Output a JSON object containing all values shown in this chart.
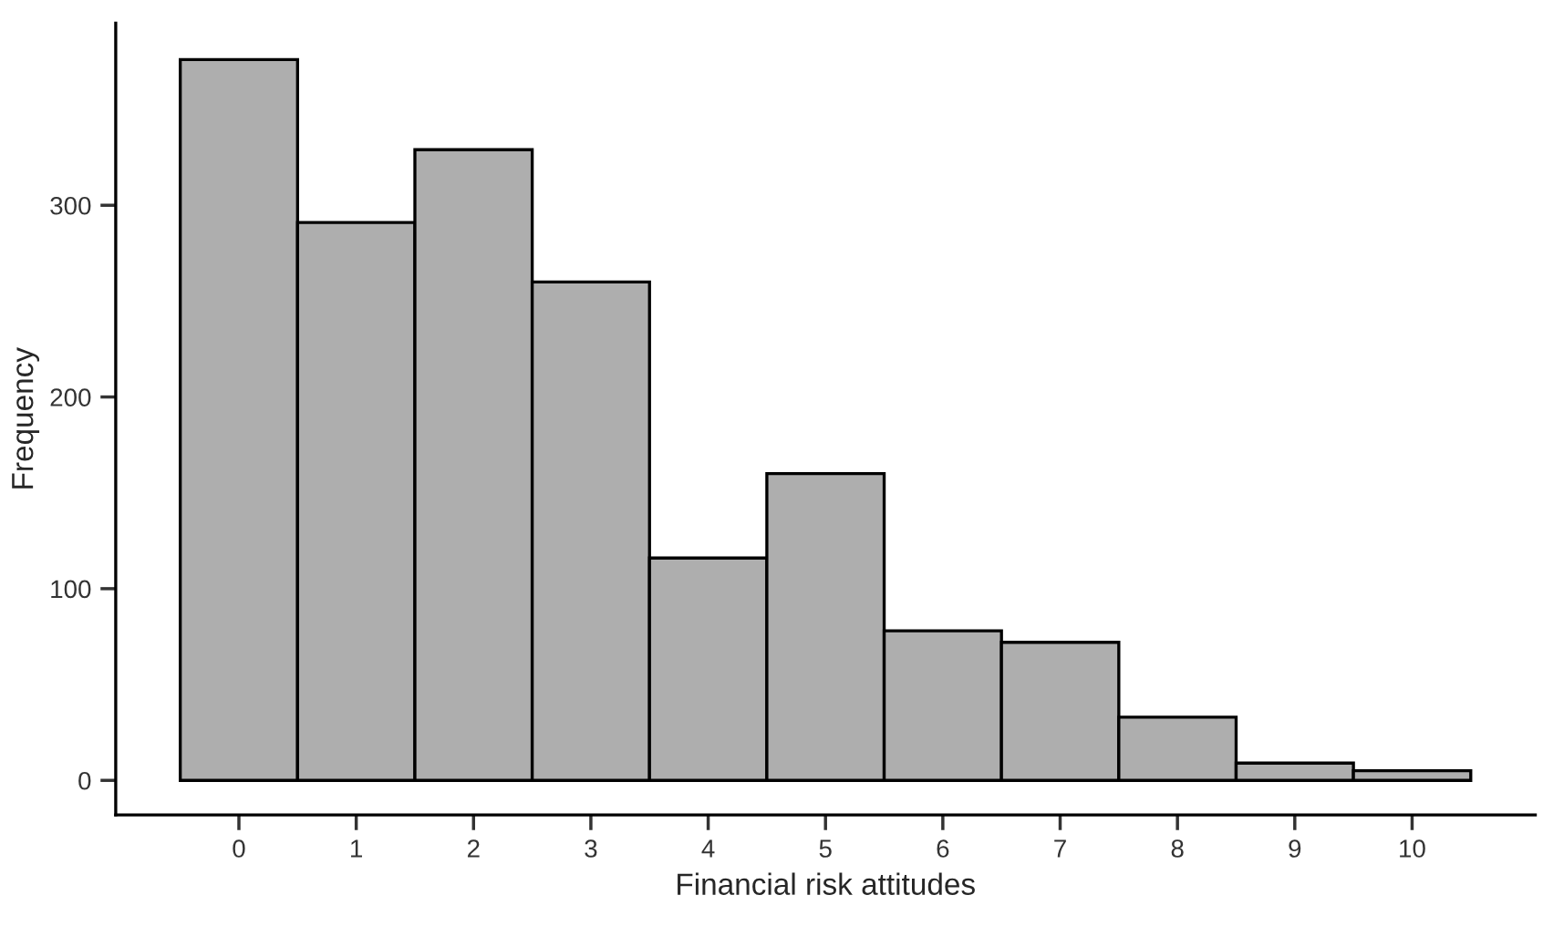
{
  "chart_data": {
    "type": "histogram",
    "xlabel": "Financial risk attitudes",
    "ylabel": "Frequency",
    "bins": [
      -0.5,
      0.5,
      1.5,
      2.5,
      3.5,
      4.5,
      5.5,
      6.5,
      7.5,
      8.5,
      9.5,
      10.5
    ],
    "values": [
      376,
      291,
      329,
      260,
      116,
      160,
      78,
      72,
      33,
      9,
      5
    ],
    "color": "#aeaeae",
    "xlim": [
      -1.05,
      11.05
    ],
    "xticks": [
      0,
      1,
      2,
      3,
      4,
      5,
      6,
      7,
      8,
      9,
      10
    ],
    "ylim": [
      -18,
      395
    ],
    "yticks": [
      0,
      100,
      200,
      300
    ],
    "grid": false
  }
}
